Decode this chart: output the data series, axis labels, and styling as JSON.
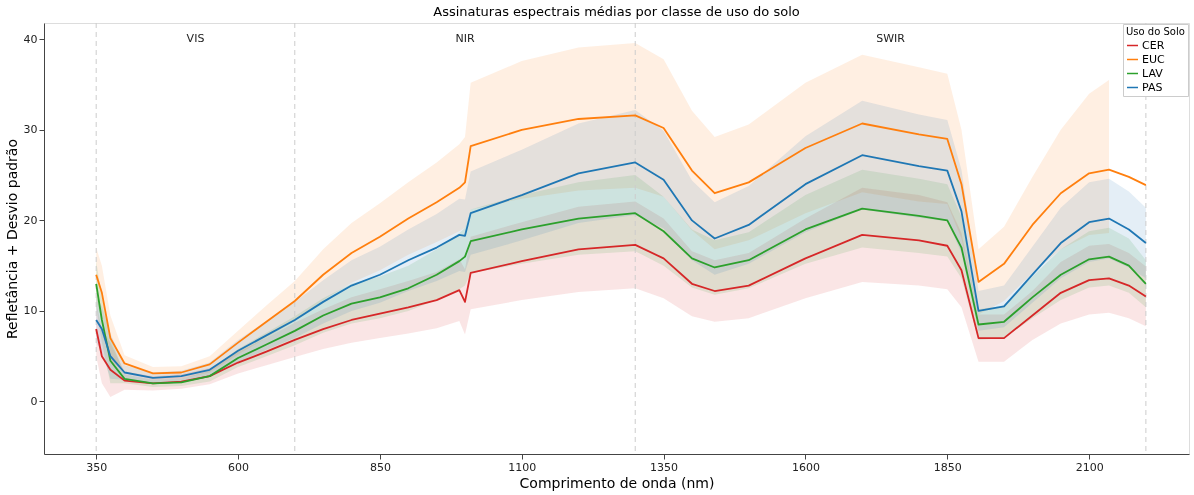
{
  "chart_data": {
    "type": "line",
    "title": "Assinaturas espectrais médias por classe de uso do solo",
    "xlabel": "Comprimento de onda (nm)",
    "ylabel": "Refletância + Desvio padrão",
    "legend_title": "Uso do Solo",
    "x": [
      350,
      360,
      375,
      400,
      450,
      500,
      550,
      600,
      650,
      700,
      750,
      800,
      850,
      900,
      950,
      990,
      1000,
      1010,
      1100,
      1200,
      1300,
      1350,
      1400,
      1440,
      1500,
      1600,
      1700,
      1800,
      1850,
      1875,
      1905,
      1950,
      2000,
      2050,
      2100,
      2135,
      2170,
      2200
    ],
    "series": [
      {
        "name": "CER",
        "color": "#d62728",
        "values": [
          8,
          5,
          3.5,
          2.3,
          2,
          2.2,
          2.8,
          4.3,
          5.5,
          6.8,
          8,
          9,
          9.7,
          10.4,
          11.2,
          12.3,
          11,
          14.2,
          15.5,
          16.8,
          17.3,
          15.8,
          13,
          12.2,
          12.8,
          15.8,
          18.4,
          17.8,
          17.2,
          14.5,
          7,
          7,
          9.5,
          12,
          13.4,
          13.6,
          12.8,
          11.6
        ],
        "lower": [
          5,
          2,
          0.5,
          1.3,
          1.2,
          1.4,
          1.9,
          3.1,
          4,
          4.9,
          5.8,
          6.5,
          7,
          7.5,
          8.1,
          8.9,
          7.4,
          10.2,
          11.2,
          12.1,
          12.5,
          11.4,
          9.4,
          8.8,
          9.2,
          11.4,
          13.2,
          12.8,
          12.4,
          10.4,
          4.4,
          4.4,
          6.8,
          8.6,
          9.6,
          9.8,
          9.2,
          8.3
        ],
        "upper": [
          11,
          8,
          6.5,
          3.3,
          2.8,
          3,
          3.7,
          5.5,
          7,
          8.7,
          10.2,
          11.5,
          12.4,
          13.3,
          14.3,
          15.7,
          14.6,
          18.2,
          19.8,
          21.5,
          22.1,
          20.2,
          16.6,
          15.6,
          16.4,
          20.2,
          23.6,
          22.8,
          22,
          18.6,
          9.6,
          9.6,
          12.2,
          15.4,
          17.2,
          17.4,
          16.4,
          14.9
        ]
      },
      {
        "name": "EUC",
        "color": "#ff7f0e",
        "values": [
          14,
          12,
          7,
          4.2,
          3.1,
          3.2,
          4.1,
          6.5,
          8.8,
          11.1,
          14,
          16.4,
          18.2,
          20.2,
          22,
          23.6,
          24.2,
          28.2,
          30,
          31.2,
          31.6,
          30.2,
          25.5,
          23,
          24.2,
          28,
          30.7,
          29.5,
          29,
          24,
          13.2,
          15.2,
          19.5,
          23,
          25.2,
          25.6,
          24.8,
          23.9
        ],
        "lower": [
          11,
          9,
          4.5,
          3.3,
          2.4,
          2.5,
          3.2,
          5.2,
          7,
          8.9,
          11.2,
          13.1,
          14.5,
          16.2,
          17.6,
          18.8,
          19.2,
          21.2,
          22.4,
          23.3,
          23.6,
          22.6,
          18.9,
          16.8,
          17.8,
          20.8,
          23.1,
          22.1,
          21.8,
          18,
          9.6,
          11.1,
          14.2,
          16.8,
          18.4,
          18.6,
          null,
          null
        ],
        "upper": [
          17,
          15,
          9.5,
          5.1,
          3.8,
          3.9,
          5,
          7.8,
          10.6,
          13.3,
          16.8,
          19.7,
          21.9,
          24.2,
          26.4,
          28.4,
          29.2,
          35.2,
          37.6,
          39.1,
          39.6,
          37.8,
          32.1,
          29.2,
          30.6,
          35.2,
          38.3,
          36.9,
          36.2,
          30,
          16.8,
          19.3,
          24.8,
          30,
          34,
          35.5,
          null,
          null
        ]
      },
      {
        "name": "LAV",
        "color": "#2ca02c",
        "values": [
          13,
          9,
          4.5,
          2.5,
          2,
          2.1,
          2.8,
          4.8,
          6.3,
          7.8,
          9.5,
          10.8,
          11.5,
          12.5,
          14,
          15.5,
          16,
          17.7,
          19,
          20.2,
          20.8,
          18.8,
          15.8,
          14.8,
          15.6,
          19,
          21.3,
          20.5,
          20,
          17,
          8.5,
          8.8,
          11.5,
          14,
          15.7,
          16,
          15,
          13
        ],
        "lower": [
          10.5,
          6.5,
          2,
          2,
          1.6,
          1.7,
          2.2,
          3.8,
          5,
          6.2,
          7.6,
          8.6,
          9.2,
          10,
          11.2,
          12.4,
          12.8,
          14.2,
          15.2,
          16.2,
          16.6,
          15,
          12.6,
          11.8,
          12.5,
          15.2,
          17,
          16.4,
          16,
          13.6,
          6.8,
          7,
          9.2,
          11.2,
          12.6,
          12.8,
          12,
          10.4
        ],
        "upper": [
          15.5,
          11.5,
          7,
          3,
          2.4,
          2.5,
          3.4,
          5.8,
          7.6,
          9.4,
          11.4,
          13,
          13.8,
          15,
          16.8,
          18.6,
          19.2,
          21.2,
          22.8,
          24.2,
          25,
          22.6,
          19,
          17.8,
          18.7,
          22.8,
          25.6,
          24.6,
          24,
          20.4,
          10.2,
          10.6,
          13.8,
          16.8,
          18.8,
          19.2,
          18,
          15.6
        ]
      },
      {
        "name": "PAS",
        "color": "#1f77b4",
        "values": [
          9,
          8,
          5,
          3.2,
          2.6,
          2.8,
          3.5,
          5.6,
          7.3,
          9,
          11,
          12.8,
          14,
          15.6,
          17,
          18.4,
          18.3,
          20.8,
          22.8,
          25.2,
          26.4,
          24.5,
          20,
          18,
          19.5,
          24,
          27.2,
          26,
          25.5,
          21,
          10,
          10.5,
          14,
          17.5,
          19.8,
          20.2,
          19,
          17.5
        ],
        "lower": [
          6.5,
          5.5,
          2.5,
          2.4,
          2,
          2.2,
          2.7,
          4.4,
          5.7,
          7,
          8.6,
          10,
          10.9,
          12.2,
          13.3,
          14.4,
          14.3,
          16.2,
          17.8,
          19.7,
          20.6,
          19.1,
          15.6,
          14,
          15.2,
          18.7,
          21.2,
          20.3,
          19.9,
          16.4,
          7.8,
          8.2,
          10.9,
          13.6,
          15.4,
          15.8,
          14.8,
          13.6
        ],
        "upper": [
          11.5,
          10.5,
          7.5,
          4,
          3.2,
          3.4,
          4.3,
          6.8,
          8.9,
          11,
          13.4,
          15.6,
          17.1,
          19,
          20.7,
          22.4,
          22.3,
          25.4,
          27.8,
          30.7,
          32.2,
          29.9,
          24.4,
          22,
          23.8,
          29.3,
          33.2,
          31.7,
          31.1,
          25.6,
          12.2,
          12.8,
          17.1,
          21.4,
          24.2,
          24.6,
          23.2,
          21.4
        ]
      }
    ],
    "xlim": [
      258,
      2276
    ],
    "ylim": [
      -5.8,
      41.8
    ],
    "xticks": [
      350,
      600,
      850,
      1100,
      1350,
      1600,
      1850,
      2100
    ],
    "yticks": [
      0,
      10,
      20,
      30,
      40
    ],
    "ref_lines": [
      {
        "axis": "x",
        "value": 350,
        "color": "#cccccc",
        "line_style": "dashed"
      },
      {
        "axis": "x",
        "value": 700,
        "color": "#cccccc",
        "line_style": "dashed"
      },
      {
        "axis": "x",
        "value": 1300,
        "color": "#cccccc",
        "line_style": "dashed"
      },
      {
        "axis": "x",
        "value": 2200,
        "color": "#cccccc",
        "line_style": "dashed"
      }
    ],
    "annotations": [
      "VIS",
      "NIR",
      "SWIR"
    ],
    "legend": "top right",
    "grid": false,
    "marker": "none",
    "line_style": "solid"
  }
}
